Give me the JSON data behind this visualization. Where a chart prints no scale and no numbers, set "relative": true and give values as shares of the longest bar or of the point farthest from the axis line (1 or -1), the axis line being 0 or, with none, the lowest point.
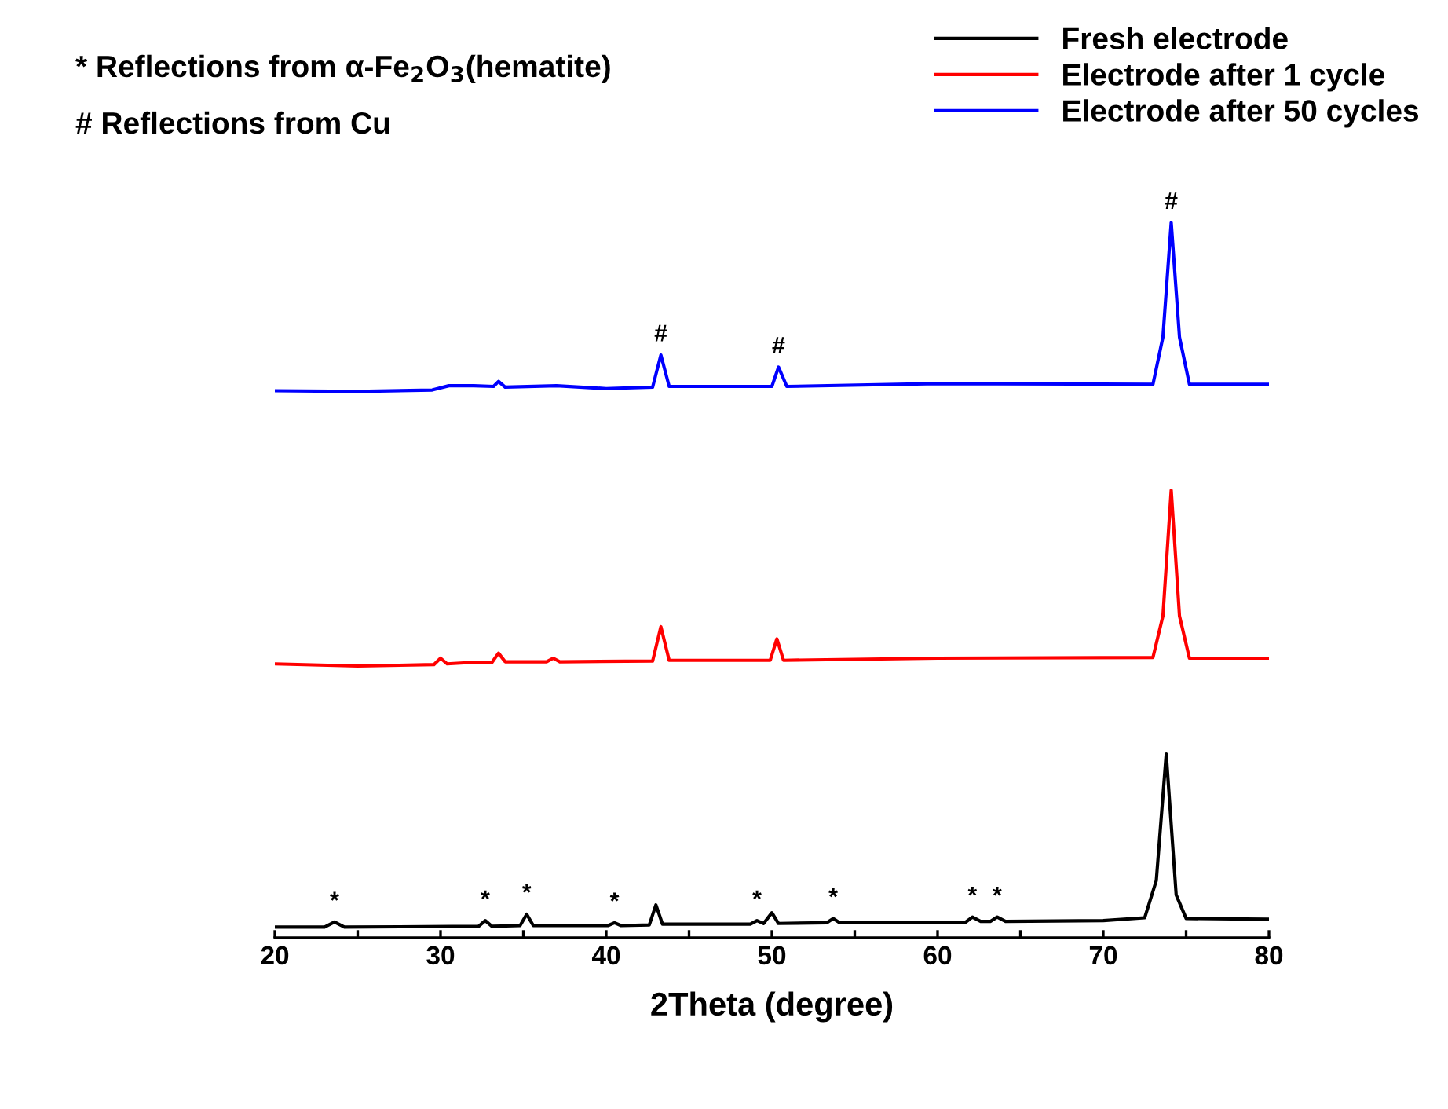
{
  "chart_data": {
    "type": "line",
    "relative": true,
    "xlabel": "2Theta (degree)",
    "xlim": [
      20,
      80
    ],
    "xticks": [
      20,
      {
        "value": 25,
        "label": null
      },
      30,
      {
        "value": 35,
        "label": null
      },
      40,
      {
        "value": 45,
        "label": null
      },
      50,
      {
        "value": 55,
        "label": null
      },
      60,
      {
        "value": 65,
        "label": null
      },
      70,
      {
        "value": 75,
        "label": null
      },
      80
    ],
    "legend": "top right",
    "grid": false,
    "tick_labels": "x",
    "series": [
      {
        "name": "Fresh electrode",
        "color": "#000000",
        "x": [
          20,
          23.0,
          23.6,
          24.2,
          32.3,
          32.7,
          33.1,
          34.8,
          35.2,
          35.6,
          40.1,
          40.5,
          40.9,
          42.6,
          43.0,
          43.4,
          48.7,
          49.1,
          49.5,
          50.0,
          50.4,
          53.3,
          53.7,
          54.1,
          61.7,
          62.1,
          62.6,
          63.2,
          63.6,
          64.1,
          70,
          72.5,
          73.2,
          73.8,
          74.4,
          75.0,
          80
        ],
        "values": [
          0.015,
          0.015,
          0.022,
          0.015,
          0.016,
          0.024,
          0.016,
          0.017,
          0.033,
          0.017,
          0.017,
          0.021,
          0.017,
          0.018,
          0.046,
          0.019,
          0.019,
          0.024,
          0.02,
          0.035,
          0.02,
          0.021,
          0.027,
          0.021,
          0.022,
          0.029,
          0.023,
          0.023,
          0.029,
          0.023,
          0.024,
          0.028,
          0.08,
          0.257,
          0.06,
          0.027,
          0.026
        ]
      },
      {
        "name": "Electrode after 1 cycle",
        "color": "#ff0000",
        "x": [
          20,
          25,
          29.6,
          30.0,
          30.4,
          31.8,
          33.1,
          33.5,
          33.9,
          36.4,
          36.8,
          37.2,
          42.8,
          43.3,
          43.8,
          49.9,
          50.3,
          50.7,
          60,
          73.0,
          73.6,
          74.1,
          74.6,
          75.2,
          80
        ],
        "values": [
          0.383,
          0.38,
          0.382,
          0.391,
          0.383,
          0.385,
          0.385,
          0.398,
          0.386,
          0.386,
          0.391,
          0.386,
          0.387,
          0.435,
          0.388,
          0.388,
          0.418,
          0.388,
          0.391,
          0.392,
          0.45,
          0.626,
          0.45,
          0.391,
          0.391
        ]
      },
      {
        "name": "Electrode after 50 cycles",
        "color": "#0000ff",
        "x": [
          20,
          25,
          29.5,
          30.5,
          32,
          33.2,
          33.5,
          33.9,
          37,
          40,
          42.8,
          43.3,
          43.8,
          50.0,
          50.4,
          50.9,
          60,
          73.0,
          73.6,
          74.1,
          74.6,
          75.2,
          80
        ],
        "values": [
          0.765,
          0.764,
          0.766,
          0.772,
          0.772,
          0.771,
          0.778,
          0.77,
          0.772,
          0.768,
          0.77,
          0.815,
          0.771,
          0.771,
          0.798,
          0.771,
          0.775,
          0.774,
          0.84,
          1.0,
          0.84,
          0.774,
          0.774
        ]
      }
    ],
    "annotations": [
      "* Reflections from α-Fe$_{2}$O$_{3}$(hematite)",
      "# Reflections from Cu",
      {
        "text": "*",
        "x": 23.6,
        "y": 0.022
      },
      {
        "text": "*",
        "x": 32.7,
        "y": 0.024
      },
      {
        "text": "*",
        "x": 35.2,
        "y": 0.033
      },
      {
        "text": "*",
        "x": 40.5,
        "y": 0.021
      },
      {
        "text": "*",
        "x": 49.1,
        "y": 0.024
      },
      {
        "text": "*",
        "x": 53.7,
        "y": 0.027
      },
      {
        "text": "*",
        "x": 62.1,
        "y": 0.029
      },
      {
        "text": "*",
        "x": 63.6,
        "y": 0.029
      },
      {
        "text": "#",
        "x": 43.3,
        "y": 0.815
      },
      {
        "text": "#",
        "x": 50.4,
        "y": 0.798
      },
      {
        "text": "#",
        "x": 74.1,
        "y": 1.0
      }
    ]
  }
}
